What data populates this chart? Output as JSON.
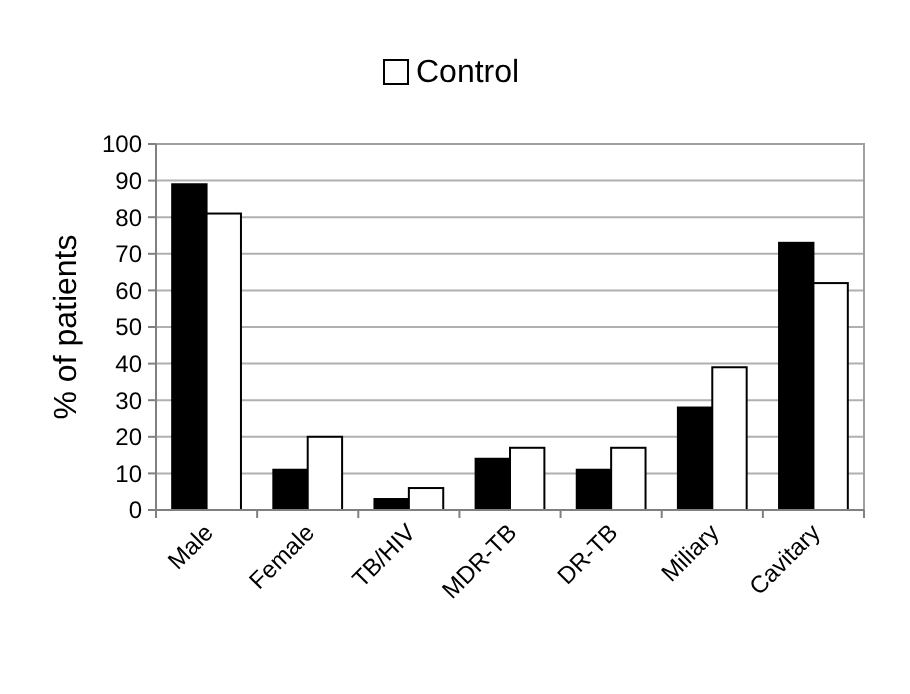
{
  "chart_data": {
    "type": "bar",
    "ylabel": "% of patients",
    "categories": [
      "Male",
      "Female",
      "TB/HIV",
      "MDR-TB",
      "DR-TB",
      "Miliary",
      "Cavitary"
    ],
    "series": [
      {
        "color": "#000000",
        "values": [
          89,
          11,
          3,
          14,
          11,
          28,
          73
        ]
      },
      {
        "name": "Control",
        "color": "#ffffff",
        "values": [
          81,
          20,
          6,
          17,
          17,
          39,
          62
        ]
      }
    ],
    "ylim": [
      0,
      100
    ],
    "yticks": [
      0,
      10,
      20,
      30,
      40,
      50,
      60,
      70,
      80,
      90,
      100
    ],
    "grid": "y",
    "legend": "top"
  }
}
